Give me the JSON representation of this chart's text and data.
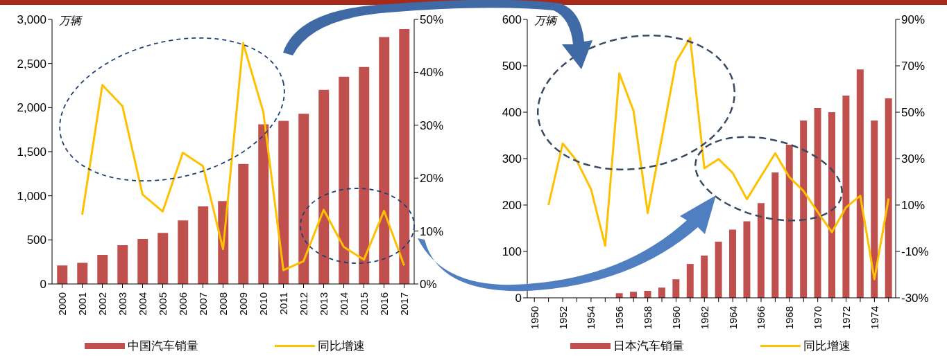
{
  "chart_data": [
    {
      "type": "bar",
      "annotations": [
        "万辆"
      ],
      "categories": [
        "2000",
        "2001",
        "2002",
        "2003",
        "2004",
        "2005",
        "2006",
        "2007",
        "2008",
        "2009",
        "2010",
        "2011",
        "2012",
        "2013",
        "2014",
        "2015",
        "2016",
        "2017"
      ],
      "series": [
        {
          "name": "中国汽车销量",
          "color": "#c0504d",
          "values": [
            210,
            240,
            330,
            440,
            510,
            580,
            720,
            880,
            940,
            1360,
            1810,
            1850,
            1930,
            2200,
            2350,
            2460,
            2800,
            2890
          ]
        },
        {
          "name": "同比增速",
          "type": "line",
          "axis": "y2",
          "color": "#ffc000",
          "values": [
            null,
            13.1,
            37.6,
            33.6,
            16.9,
            13.7,
            24.8,
            22.3,
            6.6,
            45.5,
            32.5,
            2.6,
            4.3,
            14,
            7,
            4.6,
            13.8,
            3.5
          ]
        }
      ],
      "ylim": [
        0,
        3000
      ],
      "yticks": [
        0,
        {
          "value": 500,
          "label": "500"
        },
        {
          "value": 1000,
          "label": "1,000"
        },
        {
          "value": 1500,
          "label": "1,500"
        },
        {
          "value": 2000,
          "label": "2,000"
        },
        {
          "value": 2500,
          "label": "2,500"
        },
        {
          "value": 3000,
          "label": "3,000"
        }
      ],
      "y2lim": [
        0,
        50
      ],
      "y2ticks": [
        {
          "value": 0,
          "label": "0%"
        },
        {
          "value": 10,
          "label": "10%"
        },
        {
          "value": 20,
          "label": "20%"
        },
        {
          "value": 30,
          "label": "30%"
        },
        {
          "value": 40,
          "label": "40%"
        },
        {
          "value": 50,
          "label": "50%"
        }
      ],
      "legend": "bottom",
      "marker": "none"
    },
    {
      "type": "bar",
      "annotations": [
        "万辆"
      ],
      "categories": [
        "1950",
        null,
        "1952",
        null,
        "1954",
        null,
        "1956",
        null,
        "1958",
        null,
        "1960",
        null,
        "1962",
        null,
        "1964",
        null,
        "1966",
        null,
        "1968",
        null,
        "1970",
        null,
        "1972",
        null,
        "1974",
        null
      ],
      "series": [
        {
          "name": "日本汽车销量",
          "color": "#c0504d",
          "values": [
            null,
            null,
            null,
            null,
            null,
            null,
            10,
            13,
            15,
            22,
            40,
            73,
            91,
            121,
            147,
            165,
            204,
            270,
            330,
            382,
            409,
            400,
            436,
            492,
            382,
            430
          ]
        },
        {
          "name": "同比增速",
          "type": "line",
          "axis": "y2",
          "color": "#ffc000",
          "values": [
            null,
            10,
            36.5,
            29,
            16.8,
            -7.6,
            66.7,
            50.6,
            6.5,
            39,
            71.7,
            82,
            25.8,
            29.8,
            23.8,
            12.5,
            22.4,
            32.3,
            22,
            16,
            7,
            -1.7,
            9,
            14,
            -22,
            12.8
          ]
        }
      ],
      "ylim": [
        0,
        600
      ],
      "yticks": [
        0,
        100,
        200,
        300,
        400,
        500,
        600
      ],
      "y2lim": [
        -30,
        90
      ],
      "y2ticks": [
        {
          "value": -30,
          "label": "-30%"
        },
        {
          "value": -10,
          "label": "-10%"
        },
        {
          "value": 10,
          "label": "10%"
        },
        {
          "value": 30,
          "label": "30%"
        },
        {
          "value": 50,
          "label": "50%"
        },
        {
          "value": 70,
          "label": "70%"
        },
        {
          "value": 90,
          "label": "90%"
        }
      ],
      "legend": "bottom",
      "marker": "none"
    }
  ]
}
